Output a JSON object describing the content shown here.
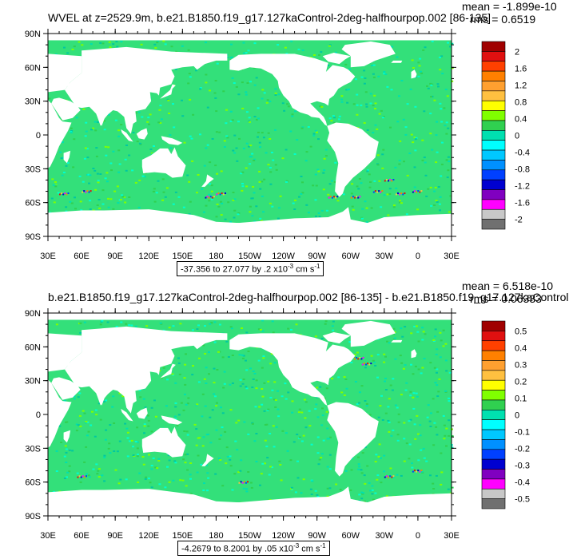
{
  "panels": [
    {
      "title": "WVEL at z=2529.9m, b.e21.B1850.f19_g17.127kaControl-2deg-halfhourpop.002 [86-135]",
      "mean": "mean = -1.899e-10",
      "rms": "rms = 0.6519",
      "range_text": "-37.356 to 27.077 by .2 x10",
      "range_exp": "-3",
      "range_unit": " cm s",
      "range_unit_exp": "-1",
      "colorbar_labels": [
        "2",
        "1.6",
        "1.2",
        "0.8",
        "0.4",
        "0",
        "-0.4",
        "-0.8",
        "-1.2",
        "-1.6",
        "-2"
      ]
    },
    {
      "title": "b.e21.B1850.f19_g17.127kaControl-2deg-halfhourpop.002 [86-135] - b.e21.B1850.f19_g17.127kaControl",
      "mean": "mean = 6.518e-10",
      "rms": "rms = 0.06333",
      "range_text": "-4.2679 to 8.2001 by .05 x10",
      "range_exp": "-3",
      "range_unit": " cm s",
      "range_unit_exp": "-1",
      "colorbar_labels": [
        "0.5",
        "0.4",
        "0.3",
        "0.2",
        "0.1",
        "0",
        "-0.1",
        "-0.2",
        "-0.3",
        "-0.4",
        "-0.5"
      ]
    }
  ],
  "lat_labels": [
    "90N",
    "60N",
    "30N",
    "0",
    "30S",
    "60S",
    "90S"
  ],
  "lon_labels": [
    "30E",
    "60E",
    "90E",
    "120E",
    "150E",
    "180",
    "150W",
    "120W",
    "90W",
    "60W",
    "30W",
    "0",
    "30E"
  ],
  "colorbar_colors": [
    "#a00000",
    "#e01010",
    "#ff4000",
    "#ff8000",
    "#ffa030",
    "#ffc040",
    "#ffff00",
    "#80ff00",
    "#30d050",
    "#00e0b0",
    "#00ffff",
    "#00c8ff",
    "#0090ff",
    "#0040ff",
    "#0000d0",
    "#8000c0",
    "#ff00ff",
    "#c8c8c8",
    "#707070"
  ],
  "ocean_color": "#33e07a",
  "land_color": "#ffffff"
}
